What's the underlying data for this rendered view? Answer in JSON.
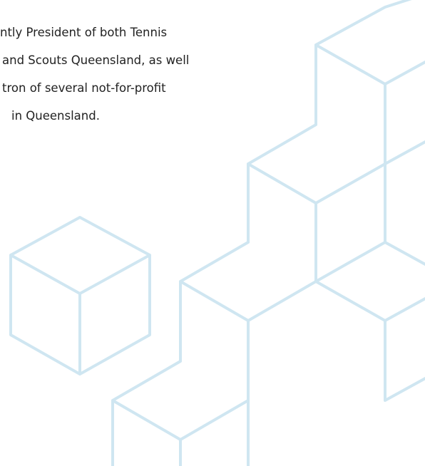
{
  "paragraph": {
    "lines": [
      "ntly President of both Tennis",
      "and Scouts Queensland, as well",
      "tron of several not-for-profit",
      "in Queensland."
    ]
  }
}
